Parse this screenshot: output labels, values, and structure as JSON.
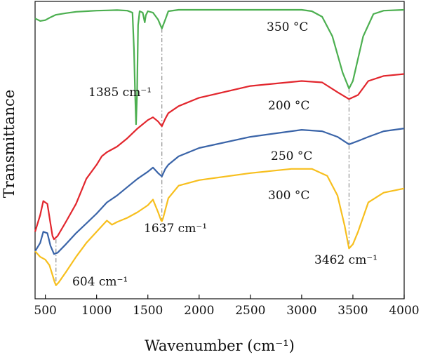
{
  "chart_data": {
    "type": "line",
    "xlabel": "Wavenumber (cm⁻¹)",
    "ylabel": "Transmittance",
    "xlim": [
      400,
      4000
    ],
    "ylim": [
      0,
      1
    ],
    "x_ticks": [
      "500",
      "1000",
      "1500",
      "2000",
      "2500",
      "3000",
      "3500",
      "4000"
    ],
    "x_tick_values": [
      500,
      1000,
      1500,
      2000,
      2500,
      3000,
      3500,
      4000
    ],
    "y_ticks_shown": false,
    "grid": false,
    "legend": "inline labels",
    "series": [
      {
        "name": "350 °C",
        "color": "#4caf50",
        "points": [
          [
            400,
            0.964
          ],
          [
            450,
            0.955
          ],
          [
            500,
            0.958
          ],
          [
            550,
            0.968
          ],
          [
            600,
            0.977
          ],
          [
            700,
            0.983
          ],
          [
            800,
            0.988
          ],
          [
            900,
            0.99
          ],
          [
            1000,
            0.992
          ],
          [
            1100,
            0.993
          ],
          [
            1200,
            0.994
          ],
          [
            1300,
            0.992
          ],
          [
            1350,
            0.985
          ],
          [
            1365,
            0.85
          ],
          [
            1375,
            0.7
          ],
          [
            1385,
            0.585
          ],
          [
            1395,
            0.7
          ],
          [
            1405,
            0.94
          ],
          [
            1420,
            0.99
          ],
          [
            1450,
            0.985
          ],
          [
            1470,
            0.95
          ],
          [
            1480,
            0.975
          ],
          [
            1500,
            0.99
          ],
          [
            1550,
            0.985
          ],
          [
            1600,
            0.96
          ],
          [
            1637,
            0.928
          ],
          [
            1670,
            0.96
          ],
          [
            1700,
            0.99
          ],
          [
            1800,
            0.995
          ],
          [
            2000,
            0.995
          ],
          [
            2500,
            0.995
          ],
          [
            3000,
            0.995
          ],
          [
            3100,
            0.99
          ],
          [
            3200,
            0.97
          ],
          [
            3300,
            0.9
          ],
          [
            3400,
            0.77
          ],
          [
            3462,
            0.713
          ],
          [
            3500,
            0.74
          ],
          [
            3600,
            0.9
          ],
          [
            3700,
            0.98
          ],
          [
            3800,
            0.992
          ],
          [
            4000,
            0.995
          ]
        ]
      },
      {
        "name": "200 °C",
        "color": "#e2262d",
        "points": [
          [
            400,
            0.2
          ],
          [
            450,
            0.26
          ],
          [
            480,
            0.31
          ],
          [
            520,
            0.3
          ],
          [
            550,
            0.23
          ],
          [
            570,
            0.185
          ],
          [
            585,
            0.173
          ],
          [
            620,
            0.185
          ],
          [
            700,
            0.235
          ],
          [
            800,
            0.3
          ],
          [
            900,
            0.39
          ],
          [
            1000,
            0.44
          ],
          [
            1050,
            0.47
          ],
          [
            1100,
            0.485
          ],
          [
            1150,
            0.495
          ],
          [
            1200,
            0.505
          ],
          [
            1300,
            0.535
          ],
          [
            1400,
            0.57
          ],
          [
            1500,
            0.6
          ],
          [
            1550,
            0.61
          ],
          [
            1600,
            0.595
          ],
          [
            1637,
            0.578
          ],
          [
            1670,
            0.605
          ],
          [
            1700,
            0.625
          ],
          [
            1800,
            0.65
          ],
          [
            2000,
            0.68
          ],
          [
            2500,
            0.722
          ],
          [
            3000,
            0.74
          ],
          [
            3200,
            0.735
          ],
          [
            3350,
            0.7
          ],
          [
            3462,
            0.675
          ],
          [
            3550,
            0.69
          ],
          [
            3650,
            0.74
          ],
          [
            3800,
            0.758
          ],
          [
            4000,
            0.765
          ]
        ]
      },
      {
        "name": "250 °C",
        "color": "#3a64a8",
        "points": [
          [
            400,
            0.13
          ],
          [
            450,
            0.16
          ],
          [
            480,
            0.2
          ],
          [
            520,
            0.195
          ],
          [
            550,
            0.15
          ],
          [
            585,
            0.12
          ],
          [
            620,
            0.125
          ],
          [
            700,
            0.155
          ],
          [
            800,
            0.195
          ],
          [
            900,
            0.23
          ],
          [
            1000,
            0.265
          ],
          [
            1100,
            0.305
          ],
          [
            1200,
            0.33
          ],
          [
            1300,
            0.36
          ],
          [
            1400,
            0.39
          ],
          [
            1500,
            0.415
          ],
          [
            1550,
            0.43
          ],
          [
            1600,
            0.41
          ],
          [
            1637,
            0.398
          ],
          [
            1670,
            0.425
          ],
          [
            1700,
            0.44
          ],
          [
            1800,
            0.47
          ],
          [
            2000,
            0.5
          ],
          [
            2500,
            0.54
          ],
          [
            3000,
            0.565
          ],
          [
            3200,
            0.56
          ],
          [
            3350,
            0.54
          ],
          [
            3462,
            0.513
          ],
          [
            3550,
            0.525
          ],
          [
            3650,
            0.54
          ],
          [
            3800,
            0.56
          ],
          [
            4000,
            0.57
          ]
        ]
      },
      {
        "name": "300 °C",
        "color": "#f7bf1e",
        "points": [
          [
            400,
            0.13
          ],
          [
            450,
            0.11
          ],
          [
            500,
            0.1
          ],
          [
            540,
            0.08
          ],
          [
            570,
            0.045
          ],
          [
            590,
            0.02
          ],
          [
            604,
            0.008
          ],
          [
            630,
            0.018
          ],
          [
            700,
            0.055
          ],
          [
            800,
            0.11
          ],
          [
            900,
            0.16
          ],
          [
            1000,
            0.2
          ],
          [
            1100,
            0.24
          ],
          [
            1150,
            0.225
          ],
          [
            1200,
            0.235
          ],
          [
            1300,
            0.25
          ],
          [
            1400,
            0.27
          ],
          [
            1500,
            0.295
          ],
          [
            1550,
            0.315
          ],
          [
            1600,
            0.27
          ],
          [
            1630,
            0.24
          ],
          [
            1637,
            0.238
          ],
          [
            1650,
            0.25
          ],
          [
            1700,
            0.32
          ],
          [
            1800,
            0.365
          ],
          [
            2000,
            0.385
          ],
          [
            2500,
            0.41
          ],
          [
            2900,
            0.425
          ],
          [
            3100,
            0.425
          ],
          [
            3250,
            0.4
          ],
          [
            3350,
            0.33
          ],
          [
            3420,
            0.22
          ],
          [
            3462,
            0.14
          ],
          [
            3500,
            0.155
          ],
          [
            3550,
            0.2
          ],
          [
            3650,
            0.305
          ],
          [
            3800,
            0.34
          ],
          [
            4000,
            0.355
          ]
        ]
      }
    ],
    "annotations": [
      {
        "text": "1385 cm⁻¹",
        "x": 1385,
        "y": 0.585,
        "line_from": 0.585,
        "line_to": 0.585
      },
      {
        "text": "1637 cm⁻¹",
        "x": 1637,
        "y": 0.238,
        "line_from": 0.928,
        "line_to": 0.238
      },
      {
        "text": "3462 cm⁻¹",
        "x": 3462,
        "y": 0.14,
        "line_from": 0.713,
        "line_to": 0.14
      },
      {
        "text": "604 cm⁻¹",
        "x": 604,
        "y": 0.008,
        "line_from": 0.173,
        "line_to": 0.008
      }
    ]
  }
}
